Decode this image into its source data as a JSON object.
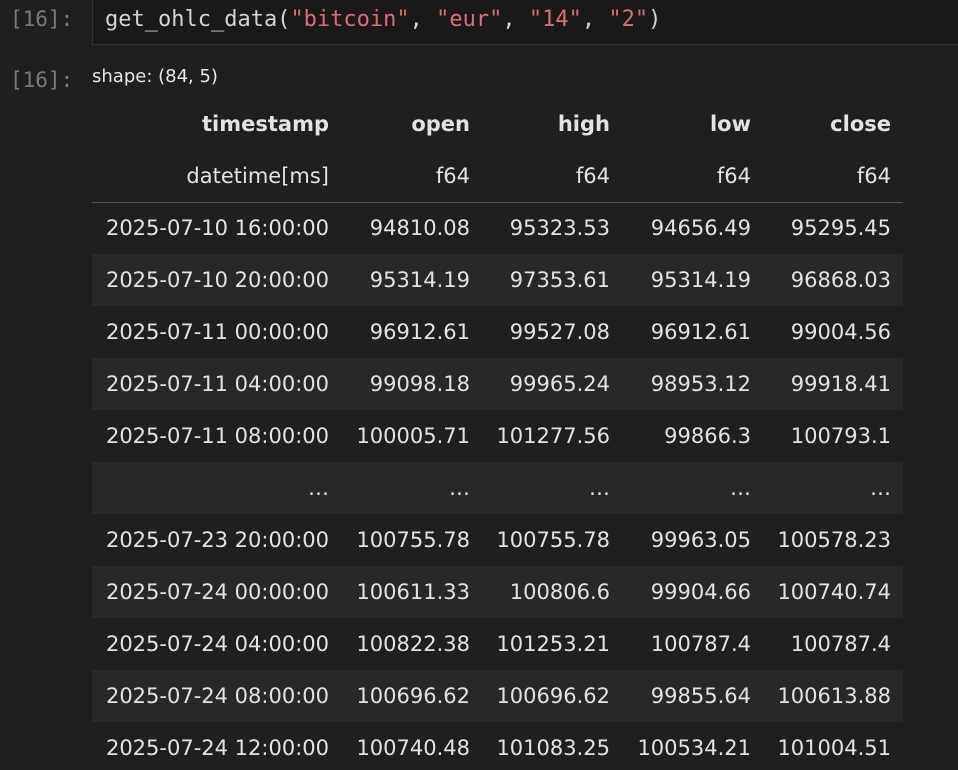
{
  "input": {
    "prompt": "[16]:",
    "code": [
      {
        "text": "get_ohlc_data(",
        "color": "#d4d4d4"
      },
      {
        "text": "\"bitcoin\"",
        "color": "#e06c6c"
      },
      {
        "text": ", ",
        "color": "#d4d4d4"
      },
      {
        "text": "\"eur\"",
        "color": "#e06c6c"
      },
      {
        "text": ", ",
        "color": "#d4d4d4"
      },
      {
        "text": "\"14\"",
        "color": "#e06c6c"
      },
      {
        "text": ", ",
        "color": "#d4d4d4"
      },
      {
        "text": "\"2\"",
        "color": "#e06c6c"
      },
      {
        "text": ")",
        "color": "#d4d4d4"
      }
    ]
  },
  "output": {
    "prompt": "[16]:",
    "shape": "shape: (84, 5)",
    "table": {
      "columns": [
        "timestamp",
        "open",
        "high",
        "low",
        "close"
      ],
      "dtypes": [
        "datetime[ms]",
        "f64",
        "f64",
        "f64",
        "f64"
      ],
      "rows": [
        [
          "2025-07-10 16:00:00",
          "94810.08",
          "95323.53",
          "94656.49",
          "95295.45"
        ],
        [
          "2025-07-10 20:00:00",
          "95314.19",
          "97353.61",
          "95314.19",
          "96868.03"
        ],
        [
          "2025-07-11 00:00:00",
          "96912.61",
          "99527.08",
          "96912.61",
          "99004.56"
        ],
        [
          "2025-07-11 04:00:00",
          "99098.18",
          "99965.24",
          "98953.12",
          "99918.41"
        ],
        [
          "2025-07-11 08:00:00",
          "100005.71",
          "101277.56",
          "99866.3",
          "100793.1"
        ],
        [
          "…",
          "…",
          "…",
          "…",
          "…"
        ],
        [
          "2025-07-23 20:00:00",
          "100755.78",
          "100755.78",
          "99963.05",
          "100578.23"
        ],
        [
          "2025-07-24 00:00:00",
          "100611.33",
          "100806.6",
          "99904.66",
          "100740.74"
        ],
        [
          "2025-07-24 04:00:00",
          "100822.38",
          "101253.21",
          "100787.4",
          "100787.4"
        ],
        [
          "2025-07-24 08:00:00",
          "100696.62",
          "100696.62",
          "99855.64",
          "100613.88"
        ],
        [
          "2025-07-24 12:00:00",
          "100740.48",
          "101083.25",
          "100534.21",
          "101004.51"
        ]
      ]
    }
  }
}
